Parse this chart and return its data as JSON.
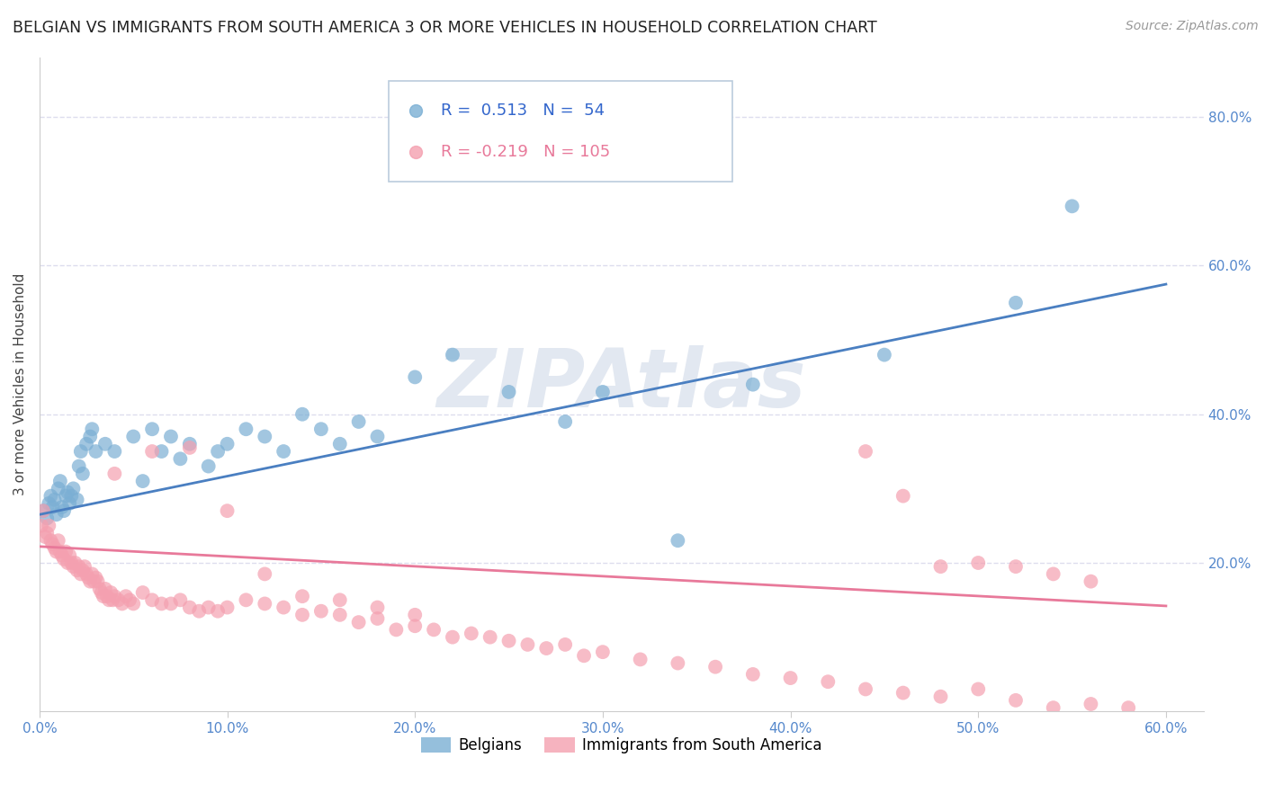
{
  "title": "BELGIAN VS IMMIGRANTS FROM SOUTH AMERICA 3 OR MORE VEHICLES IN HOUSEHOLD CORRELATION CHART",
  "source": "Source: ZipAtlas.com",
  "ylabel": "3 or more Vehicles in Household",
  "xlim": [
    0.0,
    0.62
  ],
  "ylim": [
    0.0,
    0.88
  ],
  "xticklabels": [
    "0.0%",
    "10.0%",
    "20.0%",
    "30.0%",
    "40.0%",
    "50.0%",
    "60.0%"
  ],
  "xtick_vals": [
    0.0,
    0.1,
    0.2,
    0.3,
    0.4,
    0.5,
    0.6
  ],
  "yticks_right": [
    0.2,
    0.4,
    0.6,
    0.8
  ],
  "ytick_right_labels": [
    "20.0%",
    "40.0%",
    "60.0%",
    "80.0%"
  ],
  "blue_color": "#7BAFD4",
  "pink_color": "#F4A0B0",
  "blue_line_color": "#4A7FC1",
  "pink_line_color": "#E8799A",
  "legend_blue_R": "0.513",
  "legend_blue_N": "54",
  "legend_pink_R": "-0.219",
  "legend_pink_N": "105",
  "legend_label1": "Belgians",
  "legend_label2": "Immigrants from South America",
  "watermark": "ZIPAtlas",
  "watermark_color": "#C0CCE0",
  "blue_x": [
    0.002,
    0.004,
    0.005,
    0.006,
    0.007,
    0.008,
    0.009,
    0.01,
    0.011,
    0.012,
    0.013,
    0.014,
    0.015,
    0.016,
    0.017,
    0.018,
    0.02,
    0.021,
    0.022,
    0.023,
    0.025,
    0.027,
    0.028,
    0.03,
    0.035,
    0.04,
    0.05,
    0.055,
    0.06,
    0.065,
    0.07,
    0.075,
    0.08,
    0.09,
    0.095,
    0.1,
    0.11,
    0.12,
    0.13,
    0.14,
    0.15,
    0.16,
    0.17,
    0.18,
    0.2,
    0.22,
    0.25,
    0.28,
    0.3,
    0.34,
    0.38,
    0.45,
    0.52,
    0.55
  ],
  "blue_y": [
    0.27,
    0.26,
    0.28,
    0.29,
    0.275,
    0.285,
    0.265,
    0.3,
    0.31,
    0.275,
    0.27,
    0.29,
    0.295,
    0.28,
    0.29,
    0.3,
    0.285,
    0.33,
    0.35,
    0.32,
    0.36,
    0.37,
    0.38,
    0.35,
    0.36,
    0.35,
    0.37,
    0.31,
    0.38,
    0.35,
    0.37,
    0.34,
    0.36,
    0.33,
    0.35,
    0.36,
    0.38,
    0.37,
    0.35,
    0.4,
    0.38,
    0.36,
    0.39,
    0.37,
    0.45,
    0.48,
    0.43,
    0.39,
    0.43,
    0.23,
    0.44,
    0.48,
    0.55,
    0.68
  ],
  "pink_x": [
    0.001,
    0.002,
    0.003,
    0.004,
    0.005,
    0.006,
    0.007,
    0.008,
    0.009,
    0.01,
    0.011,
    0.012,
    0.013,
    0.014,
    0.015,
    0.016,
    0.017,
    0.018,
    0.019,
    0.02,
    0.021,
    0.022,
    0.023,
    0.024,
    0.025,
    0.026,
    0.027,
    0.028,
    0.029,
    0.03,
    0.031,
    0.032,
    0.033,
    0.034,
    0.035,
    0.036,
    0.037,
    0.038,
    0.039,
    0.04,
    0.042,
    0.044,
    0.046,
    0.048,
    0.05,
    0.055,
    0.06,
    0.065,
    0.07,
    0.075,
    0.08,
    0.085,
    0.09,
    0.095,
    0.1,
    0.11,
    0.12,
    0.13,
    0.14,
    0.15,
    0.16,
    0.17,
    0.18,
    0.19,
    0.2,
    0.21,
    0.22,
    0.23,
    0.24,
    0.25,
    0.26,
    0.27,
    0.28,
    0.29,
    0.3,
    0.32,
    0.34,
    0.36,
    0.38,
    0.4,
    0.42,
    0.44,
    0.46,
    0.48,
    0.5,
    0.52,
    0.54,
    0.56,
    0.58,
    0.44,
    0.46,
    0.48,
    0.5,
    0.52,
    0.54,
    0.56,
    0.04,
    0.06,
    0.08,
    0.1,
    0.12,
    0.14,
    0.16,
    0.18,
    0.2
  ],
  "pink_y": [
    0.25,
    0.27,
    0.235,
    0.24,
    0.25,
    0.23,
    0.225,
    0.22,
    0.215,
    0.23,
    0.215,
    0.21,
    0.205,
    0.215,
    0.2,
    0.21,
    0.2,
    0.195,
    0.2,
    0.19,
    0.195,
    0.185,
    0.19,
    0.195,
    0.185,
    0.18,
    0.175,
    0.185,
    0.175,
    0.18,
    0.175,
    0.165,
    0.16,
    0.155,
    0.165,
    0.155,
    0.15,
    0.16,
    0.15,
    0.155,
    0.15,
    0.145,
    0.155,
    0.15,
    0.145,
    0.16,
    0.15,
    0.145,
    0.145,
    0.15,
    0.14,
    0.135,
    0.14,
    0.135,
    0.14,
    0.15,
    0.145,
    0.14,
    0.13,
    0.135,
    0.13,
    0.12,
    0.125,
    0.11,
    0.115,
    0.11,
    0.1,
    0.105,
    0.1,
    0.095,
    0.09,
    0.085,
    0.09,
    0.075,
    0.08,
    0.07,
    0.065,
    0.06,
    0.05,
    0.045,
    0.04,
    0.03,
    0.025,
    0.02,
    0.03,
    0.015,
    0.005,
    0.01,
    0.005,
    0.35,
    0.29,
    0.195,
    0.2,
    0.195,
    0.185,
    0.175,
    0.32,
    0.35,
    0.355,
    0.27,
    0.185,
    0.155,
    0.15,
    0.14,
    0.13
  ],
  "blue_line_x": [
    0.0,
    0.6
  ],
  "blue_line_y_start": 0.265,
  "blue_line_y_end": 0.575,
  "pink_line_x": [
    0.0,
    0.6
  ],
  "pink_line_y_start": 0.222,
  "pink_line_y_end": 0.142,
  "background_color": "#FFFFFF",
  "grid_color": "#DDDDEE",
  "title_fontsize": 12.5,
  "source_fontsize": 10,
  "axis_label_fontsize": 11,
  "tick_fontsize": 11,
  "legend_fontsize": 13
}
